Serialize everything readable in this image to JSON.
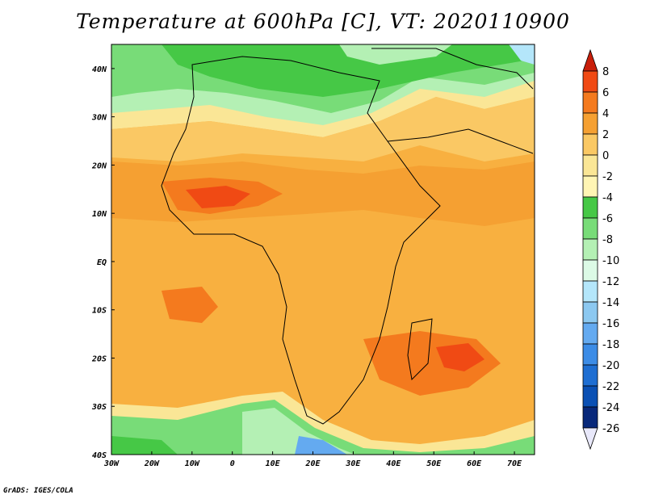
{
  "title": "Temperature at 600hPa [C], VT: 2020110900",
  "footer": "GrADS: IGES/COLA",
  "map": {
    "lon_range": [
      -30,
      75
    ],
    "lat_range": [
      -40,
      45
    ],
    "x_ticks": [
      "30W",
      "20W",
      "10W",
      "0",
      "10E",
      "20E",
      "30E",
      "40E",
      "50E",
      "60E",
      "70E"
    ],
    "y_ticks": [
      "40N",
      "30N",
      "20N",
      "10N",
      "EQ",
      "10S",
      "20S",
      "30S",
      "40S"
    ]
  },
  "colorbar": {
    "labels": [
      "8",
      "6",
      "4",
      "2",
      "0",
      "-2",
      "-4",
      "-6",
      "-8",
      "-10",
      "-12",
      "-14",
      "-16",
      "-18",
      "-20",
      "-22",
      "-24",
      "-26"
    ],
    "colors": [
      "#c81e0a",
      "#f04a14",
      "#f47a1e",
      "#f5a032",
      "#fac864",
      "#fae696",
      "#fff5b4",
      "#46c846",
      "#78dc78",
      "#b4f0b4",
      "#dcfae6",
      "#b4e6fa",
      "#8cc8f0",
      "#64aaf0",
      "#3c8ce6",
      "#1e6ed2",
      "#0a50b4",
      "#08287a",
      "#0a0a50"
    ]
  }
}
